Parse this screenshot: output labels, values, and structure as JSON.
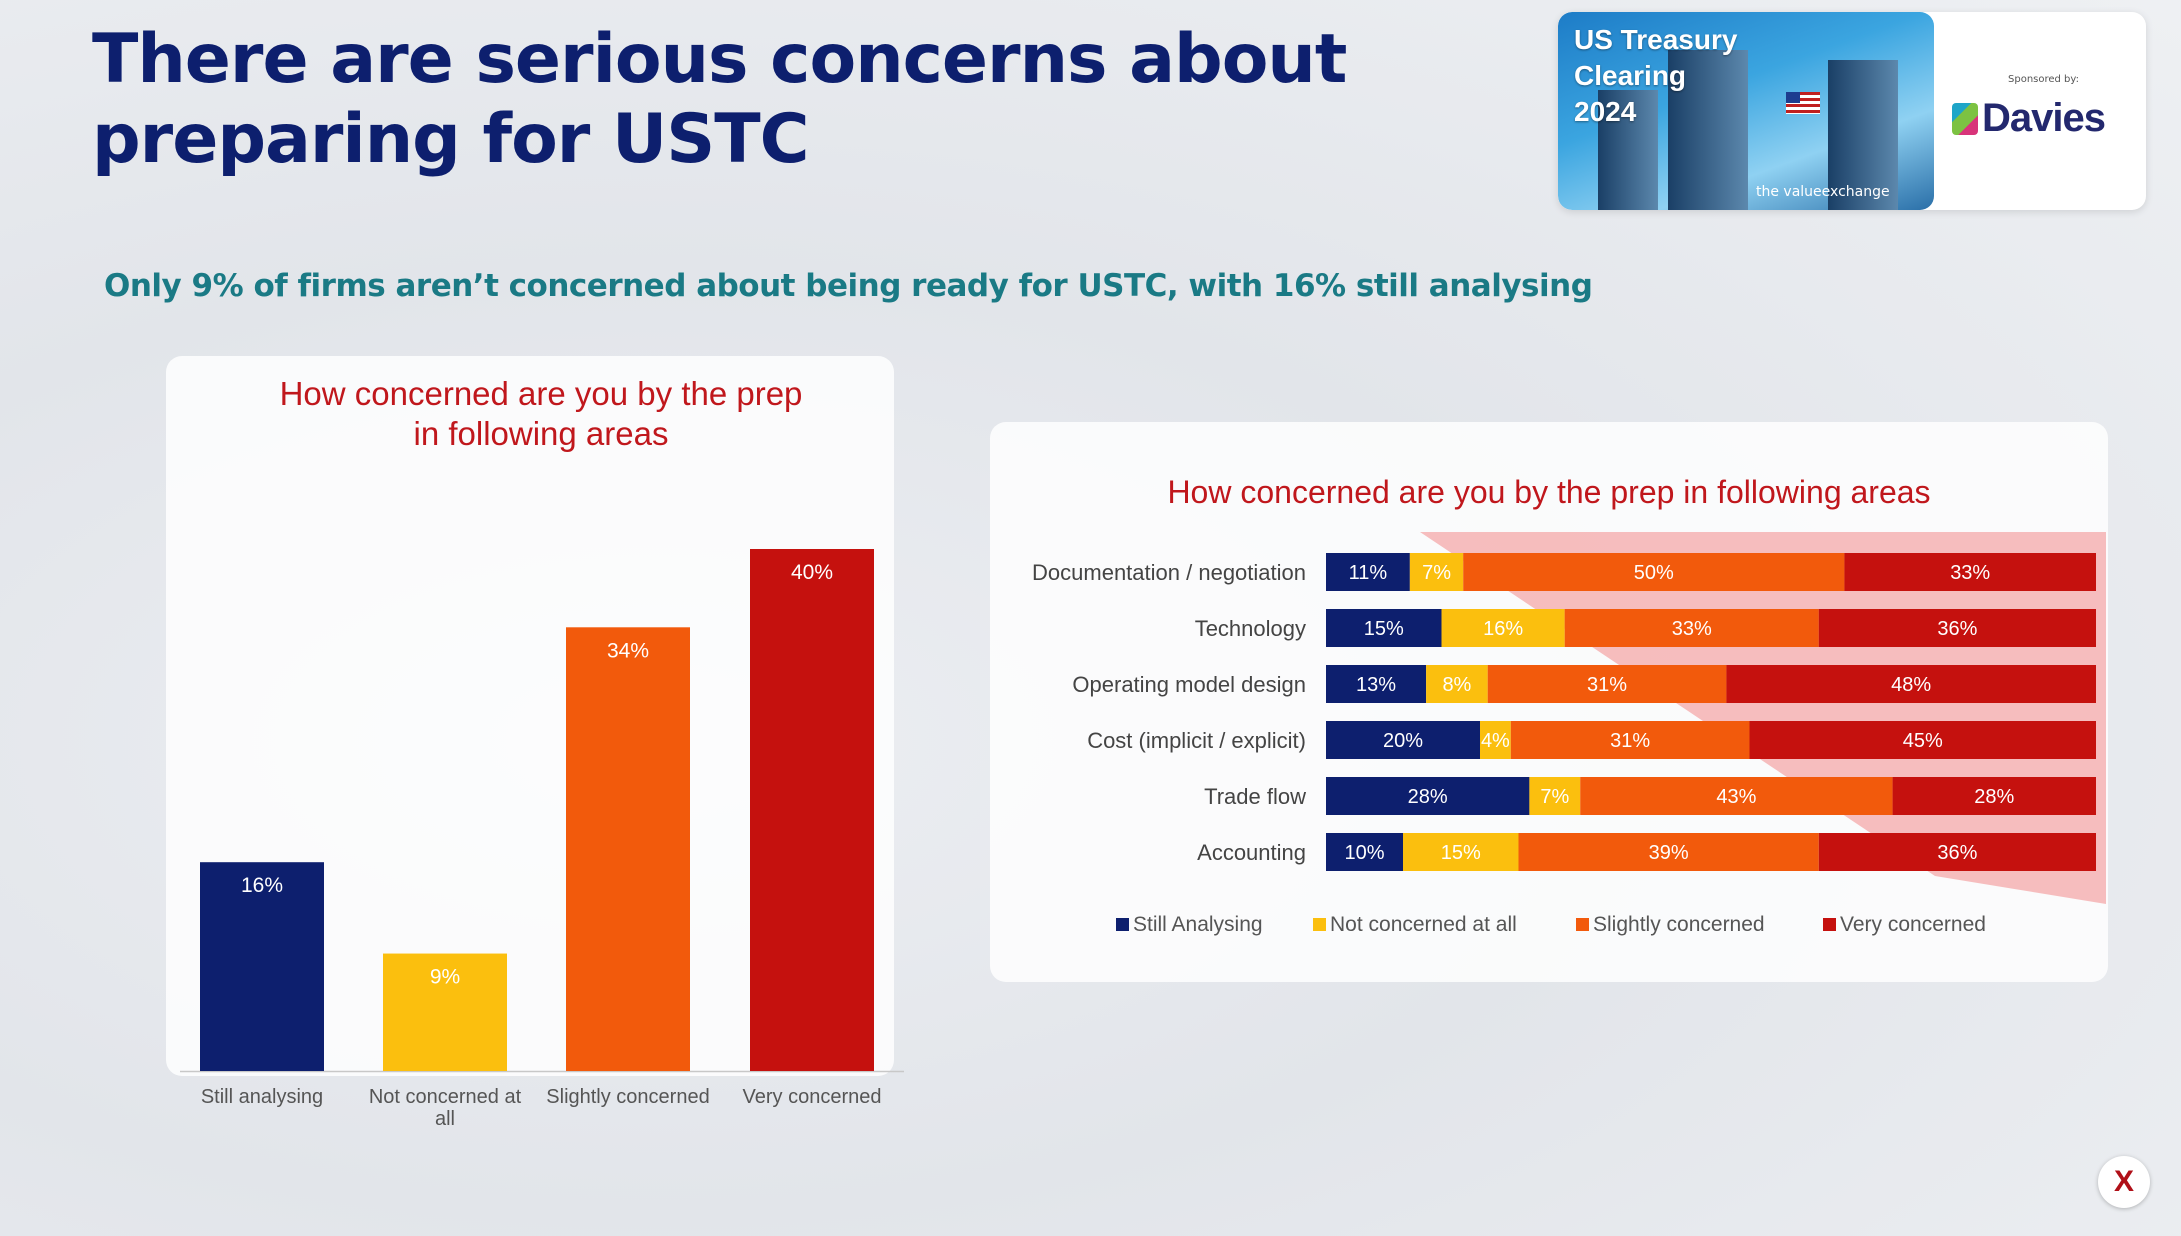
{
  "page": {
    "title": "There are serious concerns about\npreparing for USTC",
    "subtitle": "Only 9% of firms aren’t concerned about being ready for USTC, with 16% still analysing"
  },
  "brand": {
    "event_title": "US Treasury\nClearing\n2024",
    "tagline": "the valueexchange",
    "sponsor_label": "Sponsored by:",
    "sponsor_name": "Davies"
  },
  "colors": {
    "still_analysing": "#0d1f6e",
    "not_concerned": "#fbbf0e",
    "slightly_concerned": "#f25a0c",
    "very_concerned": "#c5110e"
  },
  "chart_data": [
    {
      "type": "bar",
      "title": "How concerned are you by the prep\nin following areas",
      "categories": [
        "Still analysing",
        "Not concerned at all",
        "Slightly concerned",
        "Very concerned"
      ],
      "values": [
        16,
        9,
        34,
        40
      ],
      "labels": [
        "16%",
        "9%",
        "34%",
        "40%"
      ],
      "colors": [
        "#0d1f6e",
        "#fbbf0e",
        "#f25a0c",
        "#c5110e"
      ],
      "ylim": [
        0,
        40
      ],
      "xlabel": "",
      "ylabel": ""
    },
    {
      "type": "bar",
      "orientation": "horizontal",
      "stacked": true,
      "title": "How concerned are you by the prep in following areas",
      "categories": [
        "Documentation / negotiation",
        "Technology",
        "Operating model design",
        "Cost (implicit / explicit)",
        "Trade flow",
        "Accounting"
      ],
      "series": [
        {
          "name": "Still Analysing",
          "color": "#0d1f6e",
          "values": [
            11,
            15,
            13,
            20,
            28,
            10
          ]
        },
        {
          "name": "Not concerned at all",
          "color": "#fbbf0e",
          "values": [
            7,
            16,
            8,
            4,
            7,
            15
          ]
        },
        {
          "name": "Slightly concerned",
          "color": "#f25a0c",
          "values": [
            50,
            33,
            31,
            31,
            43,
            39
          ]
        },
        {
          "name": "Very concerned",
          "color": "#c5110e",
          "values": [
            33,
            36,
            48,
            45,
            28,
            36
          ]
        }
      ],
      "legend": "bottom"
    }
  ]
}
